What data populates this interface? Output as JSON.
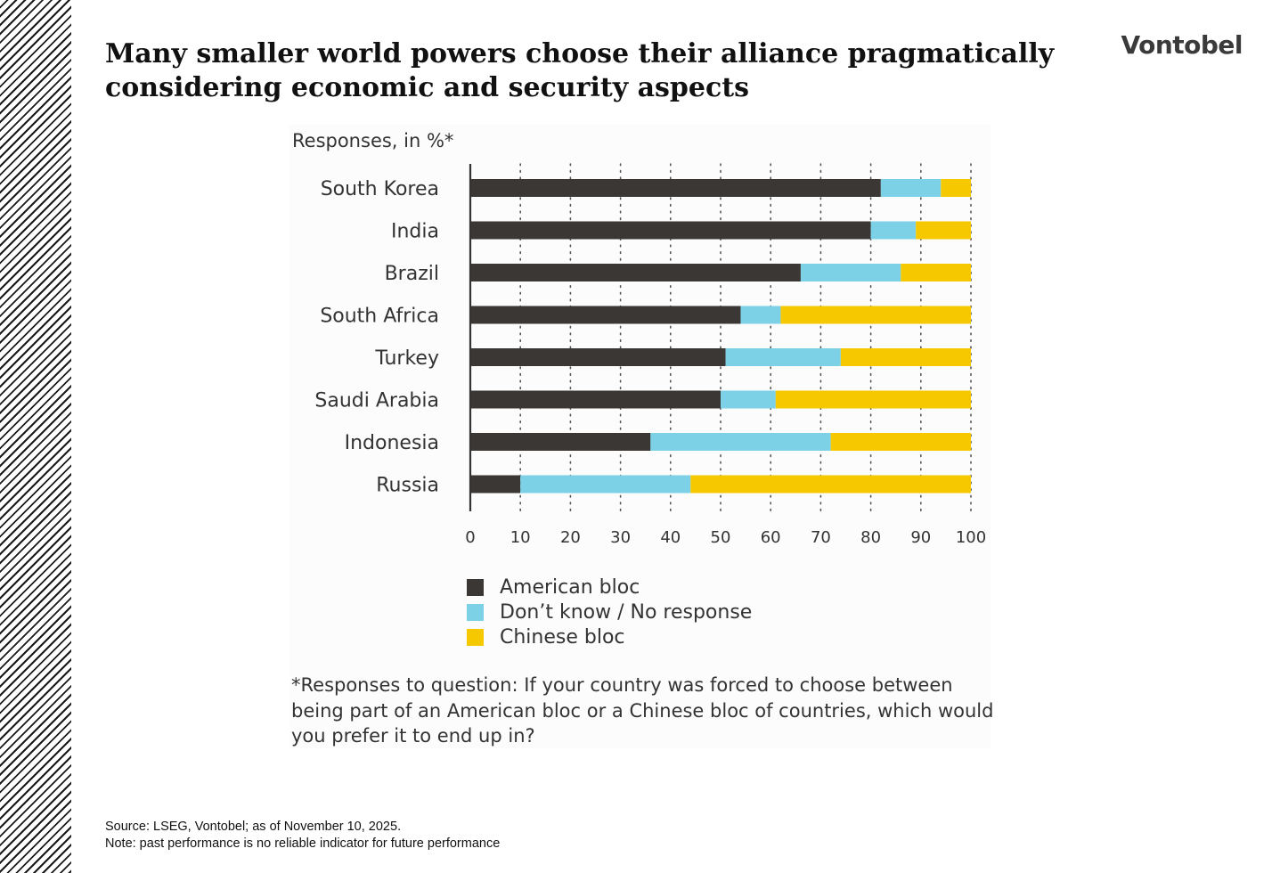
{
  "page": {
    "title": "Many smaller world powers choose their alliance pragmatically considering economic and security aspects",
    "brand": "Vontobel",
    "source_line": "Source: LSEG, Vontobel; as of November 10, 2025.",
    "note_line": "Note: past performance is no reliable indicator for future performance"
  },
  "chart_data": {
    "type": "bar",
    "orientation": "horizontal",
    "stacked": true,
    "units_label": "Responses, in %*",
    "categories": [
      "South Korea",
      "India",
      "Brazil",
      "South Africa",
      "Turkey",
      "Saudi Arabia",
      "Indonesia",
      "Russia"
    ],
    "series": [
      {
        "name": "American bloc",
        "color": "#3b3735",
        "values": [
          82,
          80,
          66,
          54,
          51,
          50,
          36,
          10
        ]
      },
      {
        "name": "Don’t know / No response",
        "color": "#7dd1e6",
        "values": [
          12,
          9,
          20,
          8,
          23,
          11,
          36,
          34
        ]
      },
      {
        "name": "Chinese bloc",
        "color": "#f6c800",
        "values": [
          6,
          11,
          14,
          38,
          26,
          39,
          28,
          56
        ]
      }
    ],
    "xlim": [
      0,
      100
    ],
    "xticks": [
      0,
      10,
      20,
      30,
      40,
      50,
      60,
      70,
      80,
      90,
      100
    ],
    "grid": "vertical dotted",
    "legend_placement": "bottom",
    "footnote": "*Responses to question: If your country was forced to choose between being part of an American bloc or a Chinese bloc of countries, which would you prefer it to end up in?"
  }
}
